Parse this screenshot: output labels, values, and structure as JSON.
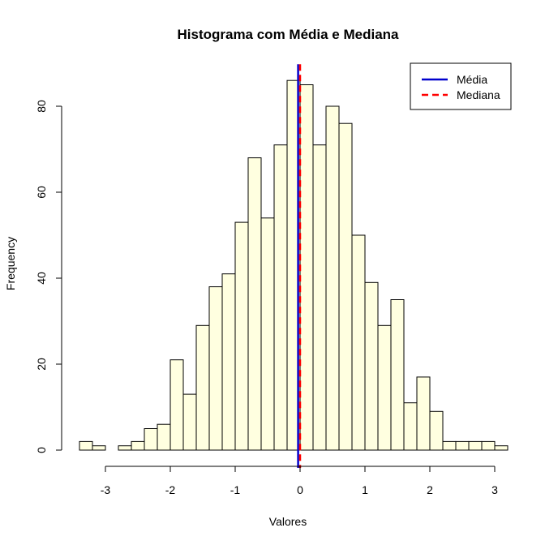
{
  "chart_data": {
    "type": "bar",
    "title": "Histograma com Média e Mediana",
    "xlabel": "Valores",
    "ylabel": "Frequency",
    "bin_width": 0.2,
    "bins": [
      {
        "x0": -3.4,
        "x1": -3.2,
        "count": 2
      },
      {
        "x0": -3.2,
        "x1": -3.0,
        "count": 1
      },
      {
        "x0": -3.0,
        "x1": -2.8,
        "count": 0
      },
      {
        "x0": -2.8,
        "x1": -2.6,
        "count": 1
      },
      {
        "x0": -2.6,
        "x1": -2.4,
        "count": 2
      },
      {
        "x0": -2.4,
        "x1": -2.2,
        "count": 5
      },
      {
        "x0": -2.2,
        "x1": -2.0,
        "count": 6
      },
      {
        "x0": -2.0,
        "x1": -1.8,
        "count": 21
      },
      {
        "x0": -1.8,
        "x1": -1.6,
        "count": 13
      },
      {
        "x0": -1.6,
        "x1": -1.4,
        "count": 29
      },
      {
        "x0": -1.4,
        "x1": -1.2,
        "count": 38
      },
      {
        "x0": -1.2,
        "x1": -1.0,
        "count": 41
      },
      {
        "x0": -1.0,
        "x1": -0.8,
        "count": 53
      },
      {
        "x0": -0.8,
        "x1": -0.6,
        "count": 68
      },
      {
        "x0": -0.6,
        "x1": -0.4,
        "count": 54
      },
      {
        "x0": -0.4,
        "x1": -0.2,
        "count": 71
      },
      {
        "x0": -0.2,
        "x1": 0.0,
        "count": 86
      },
      {
        "x0": 0.0,
        "x1": 0.2,
        "count": 85
      },
      {
        "x0": 0.2,
        "x1": 0.4,
        "count": 71
      },
      {
        "x0": 0.4,
        "x1": 0.6,
        "count": 80
      },
      {
        "x0": 0.6,
        "x1": 0.8,
        "count": 76
      },
      {
        "x0": 0.8,
        "x1": 1.0,
        "count": 50
      },
      {
        "x0": 1.0,
        "x1": 1.2,
        "count": 39
      },
      {
        "x0": 1.2,
        "x1": 1.4,
        "count": 29
      },
      {
        "x0": 1.4,
        "x1": 1.6,
        "count": 35
      },
      {
        "x0": 1.6,
        "x1": 1.8,
        "count": 11
      },
      {
        "x0": 1.8,
        "x1": 2.0,
        "count": 17
      },
      {
        "x0": 2.0,
        "x1": 2.2,
        "count": 9
      },
      {
        "x0": 2.2,
        "x1": 2.4,
        "count": 2
      },
      {
        "x0": 2.4,
        "x1": 2.6,
        "count": 2
      },
      {
        "x0": 2.6,
        "x1": 2.8,
        "count": 2
      },
      {
        "x0": 2.8,
        "x1": 3.0,
        "count": 2
      },
      {
        "x0": 3.0,
        "x1": 3.2,
        "count": 1
      }
    ],
    "xlim": [
      -3.4,
      3.2
    ],
    "ylim": [
      0,
      86
    ],
    "x_ticks": [
      -3,
      -2,
      -1,
      0,
      1,
      2,
      3
    ],
    "y_ticks": [
      0,
      20,
      40,
      60,
      80
    ],
    "bar_fill": "#ffffe0",
    "bar_stroke": "#000000",
    "reference_lines": [
      {
        "name": "Média",
        "x": -0.03,
        "color": "#0000cd",
        "style": "solid"
      },
      {
        "name": "Mediana",
        "x": 0.0,
        "color": "#ff0000",
        "style": "dashed"
      }
    ],
    "legend": {
      "position": "top-right",
      "entries": [
        {
          "label": "Média",
          "color": "#0000cd",
          "style": "solid"
        },
        {
          "label": "Mediana",
          "color": "#ff0000",
          "style": "dashed"
        }
      ]
    },
    "grid": false
  }
}
